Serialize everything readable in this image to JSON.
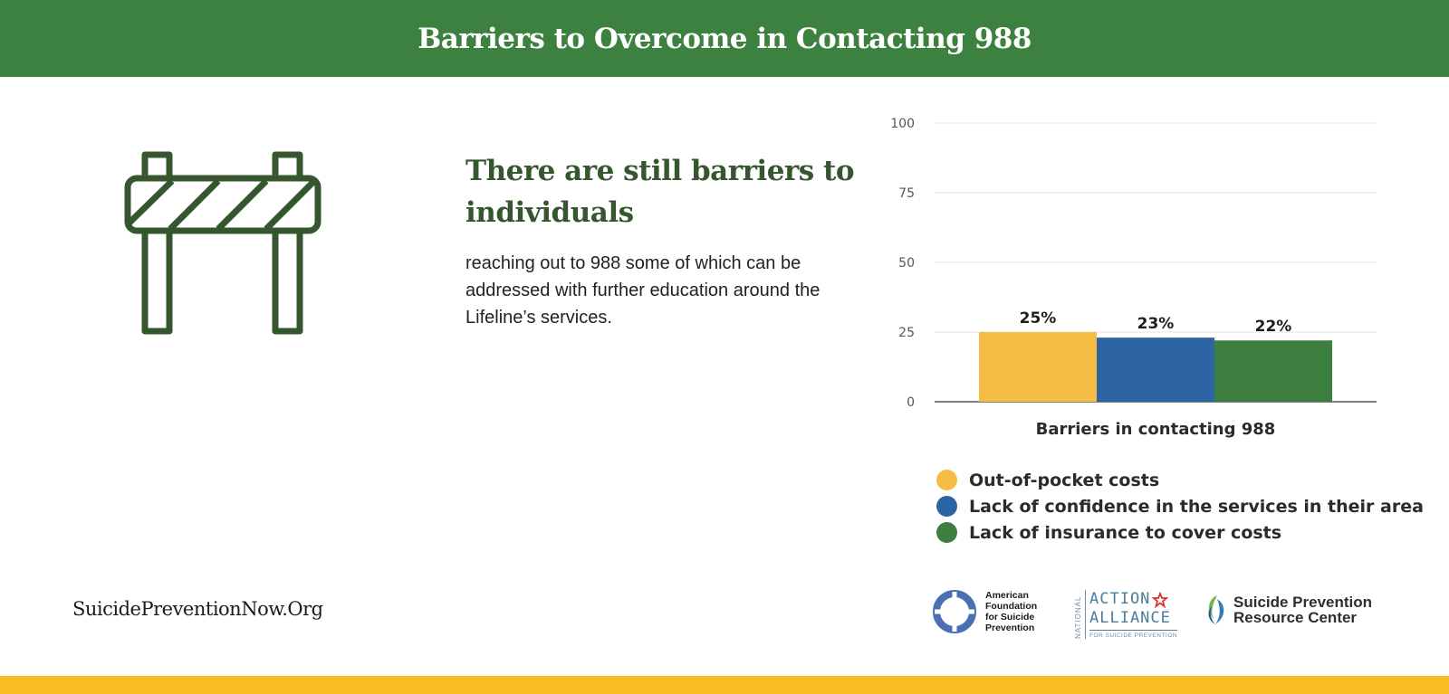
{
  "header": {
    "title": "Barriers to Overcome in Contacting 988"
  },
  "icon": {
    "name": "road-barrier-icon"
  },
  "headline": "There are still barriers to individuals",
  "body_text": "reaching out to 988 some of which can be addressed with further education around the Lifeline’s services.",
  "chart_data": {
    "type": "bar",
    "xlabel": "Barriers in contacting 988",
    "ylabel": "",
    "ylim": [
      0,
      100
    ],
    "yticks": [
      0,
      25,
      50,
      75,
      100
    ],
    "grid": true,
    "legend_position": "bottom",
    "series": [
      {
        "name": "Out-of-pocket costs",
        "value": 25,
        "label": "25%",
        "color": "#f5bd45"
      },
      {
        "name": "Lack of confidence in the services in their area",
        "value": 23,
        "label": "23%",
        "color": "#2d64a3"
      },
      {
        "name": "Lack of insurance to cover costs",
        "value": 22,
        "label": "22%",
        "color": "#3c7f3e"
      }
    ]
  },
  "footer": {
    "url": "SuicidePreventionNow.Org",
    "logos": {
      "afsp": {
        "lines": [
          "American",
          "Foundation",
          "for Suicide",
          "Prevention"
        ]
      },
      "alliance": {
        "vertical": "NATIONAL",
        "word1": "ACTION",
        "word2": "ALLIANCE",
        "sub": "FOR SUICIDE PREVENTION"
      },
      "sprc": {
        "line1": "Suicide Prevention",
        "line2": "Resource Center"
      }
    }
  },
  "colors": {
    "header_bg": "#3d8140",
    "headline": "#35562f",
    "icon": "#35562f",
    "bottom_bar": "#f8bd22"
  }
}
